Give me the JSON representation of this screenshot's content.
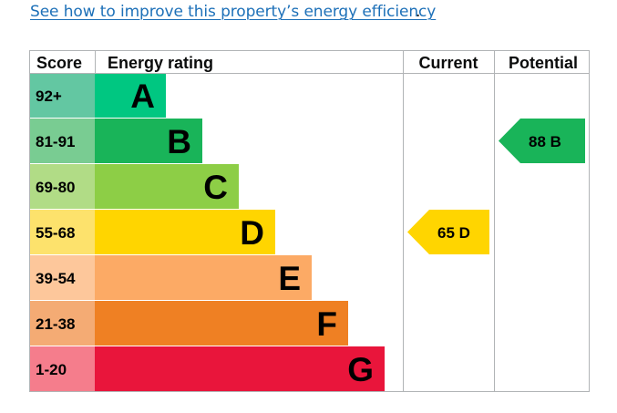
{
  "link": {
    "text": "See how to improve this property’s energy efficiency",
    "trailing": "."
  },
  "chart_data": {
    "type": "table",
    "title": "Energy rating",
    "headers": {
      "score": "Score",
      "rating": "Energy rating",
      "current": "Current",
      "potential": "Potential"
    },
    "bands": [
      {
        "score": "92+",
        "letter": "A",
        "score_color": "#63c7a2",
        "bar_color": "#00c781",
        "text_color": "#000000"
      },
      {
        "score": "81-91",
        "letter": "B",
        "score_color": "#79cc92",
        "bar_color": "#19b459",
        "text_color": "#000000"
      },
      {
        "score": "69-80",
        "letter": "C",
        "score_color": "#b1dc86",
        "bar_color": "#8dce46",
        "text_color": "#000000"
      },
      {
        "score": "55-68",
        "letter": "D",
        "score_color": "#fde26c",
        "bar_color": "#ffd500",
        "text_color": "#000000"
      },
      {
        "score": "39-54",
        "letter": "E",
        "score_color": "#fdc79b",
        "bar_color": "#fcaa65",
        "text_color": "#000000"
      },
      {
        "score": "21-38",
        "letter": "F",
        "score_color": "#f4ab74",
        "bar_color": "#ef8023",
        "text_color": "#000000"
      },
      {
        "score": "1-20",
        "letter": "G",
        "score_color": "#f57d8c",
        "bar_color": "#e9153b",
        "text_color": "#000000"
      }
    ],
    "current": {
      "value": 65,
      "band": "D",
      "label": "65  D",
      "color": "#ffd500"
    },
    "potential": {
      "value": 88,
      "band": "B",
      "label": "88  B",
      "color": "#19b459"
    }
  }
}
